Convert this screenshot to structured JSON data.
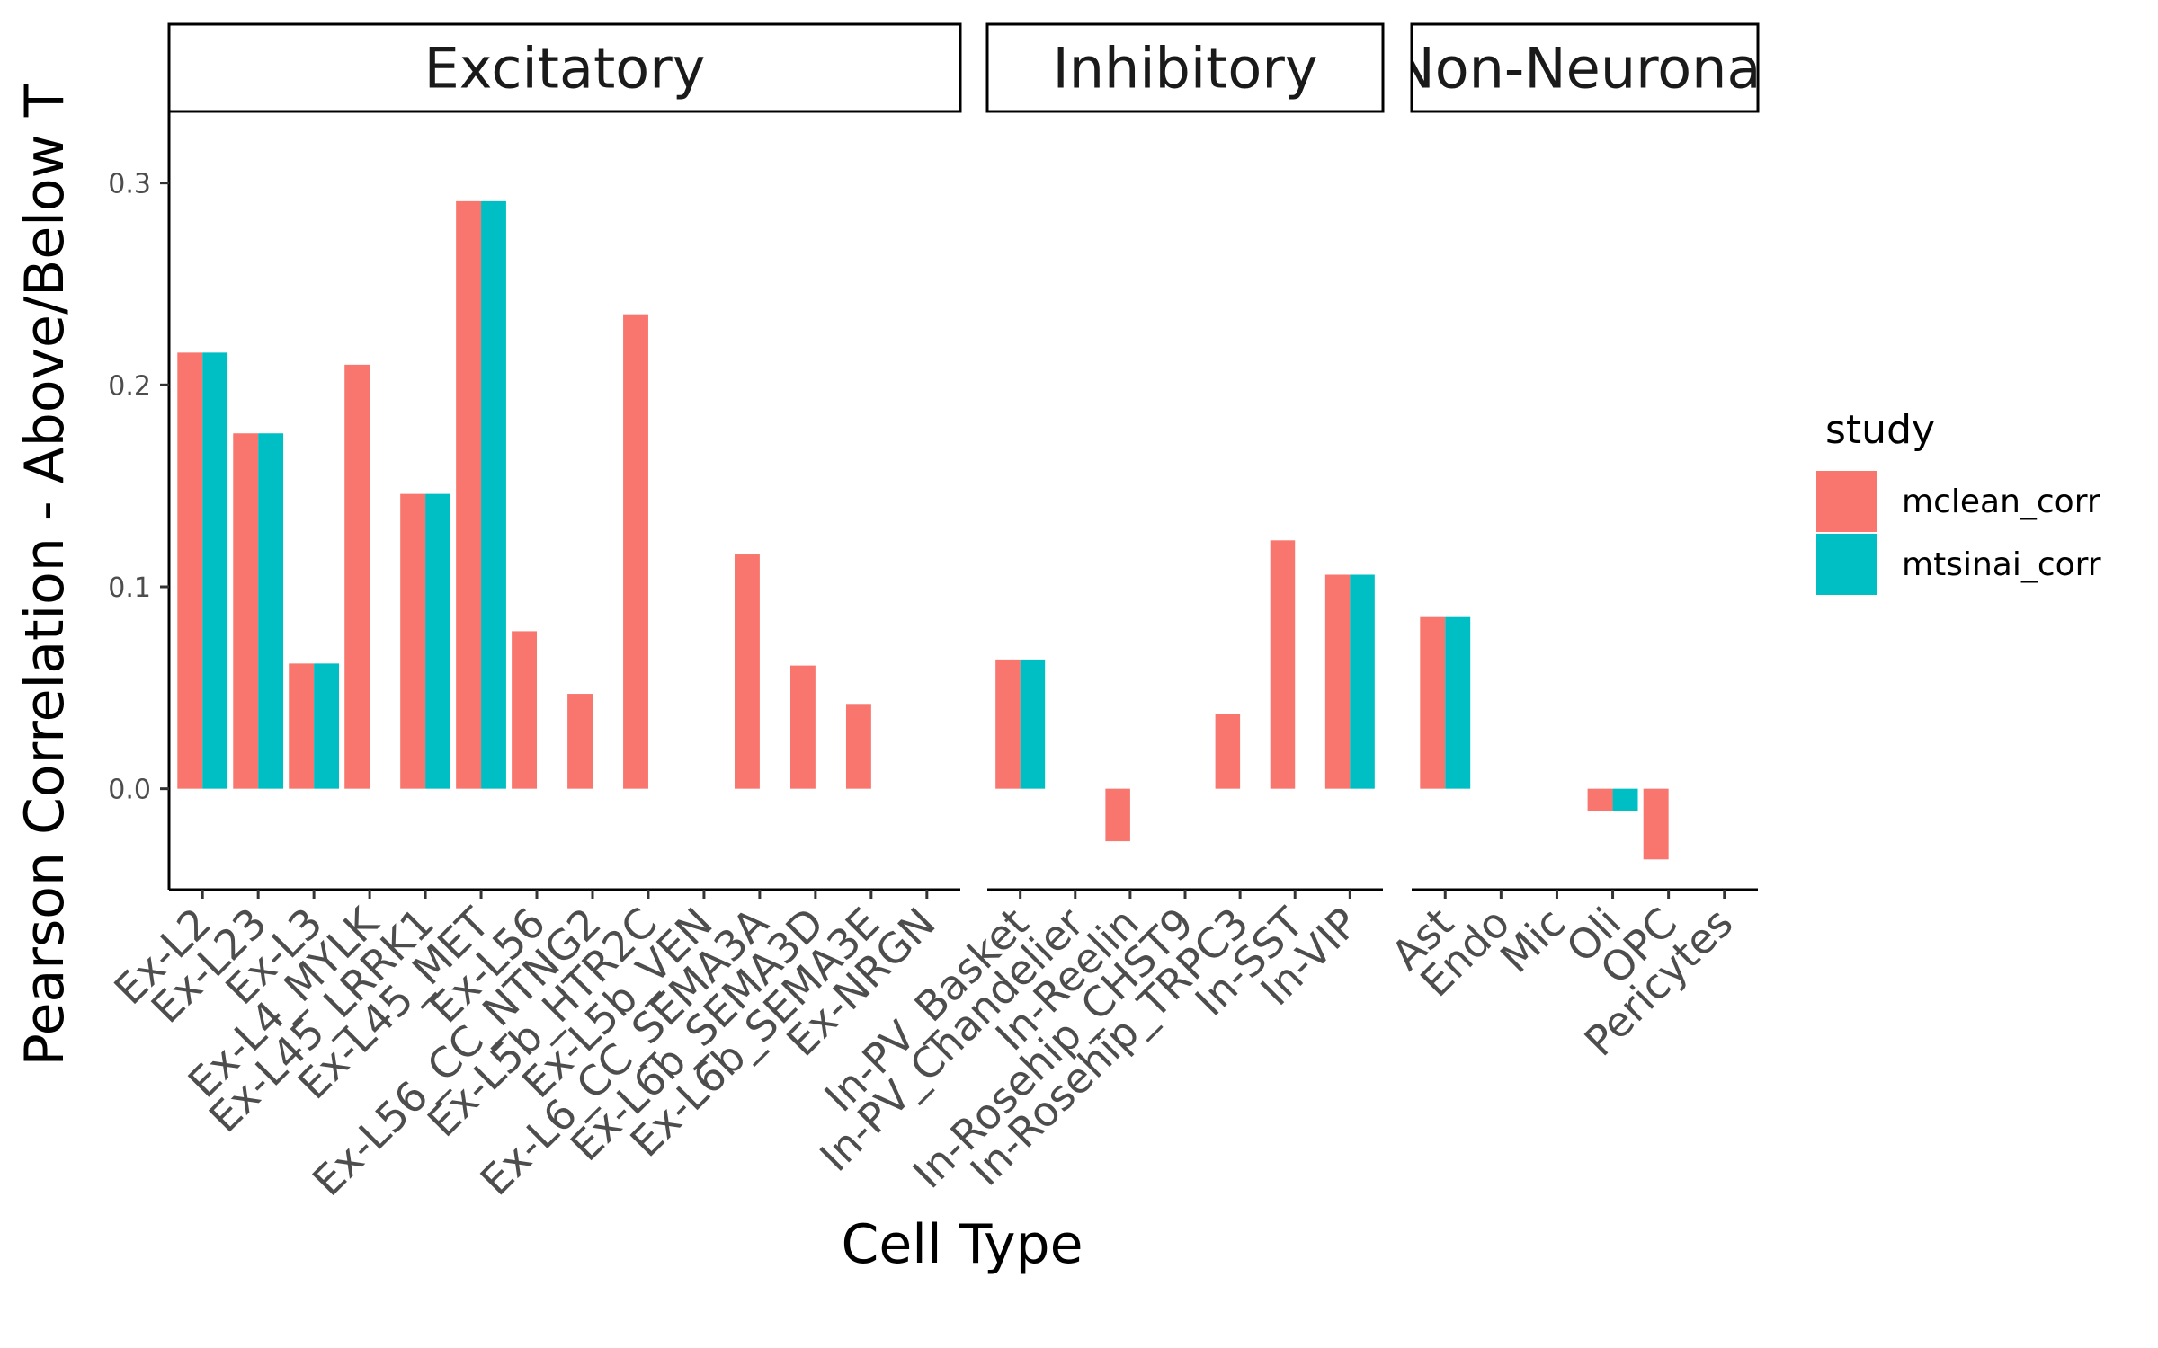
{
  "chart_data": {
    "type": "bar",
    "xlabel": "Cell Type",
    "ylabel": "Pearson Correlation - Above/Below T",
    "ylim": [
      -0.05,
      0.335
    ],
    "yticks": [
      "0.0",
      "0.1",
      "0.2",
      "0.3"
    ],
    "ytick_values": [
      0.0,
      0.1,
      0.2,
      0.3
    ],
    "grid": false,
    "legend": {
      "title": "study",
      "position": "right",
      "entries": [
        {
          "name": "mclean_corr",
          "color": "#F8766D"
        },
        {
          "name": "mtsinai_corr",
          "color": "#00BFC4"
        }
      ]
    },
    "facets": [
      {
        "title": "Excitatory",
        "categories": [
          "Ex-L2",
          "Ex-L23",
          "Ex-L3",
          "Ex-L4_MYLK",
          "Ex-L45_LRRK1",
          "Ex-L45_MET",
          "Ex-L56",
          "Ex-L56_CC_NTNG2",
          "Ex-L5b_HTR2C",
          "Ex-L5b_VEN",
          "Ex-L6_CC_SEMA3A",
          "Ex-L6b_SEMA3D",
          "Ex-L6b_SEMA3E",
          "Ex-NRGN"
        ],
        "series": [
          {
            "name": "mclean_corr",
            "values": [
              0.216,
              0.176,
              0.062,
              0.21,
              0.146,
              0.291,
              0.078,
              0.047,
              0.235,
              null,
              0.116,
              0.061,
              0.042,
              null
            ]
          },
          {
            "name": "mtsinai_corr",
            "values": [
              0.216,
              0.176,
              0.062,
              null,
              0.146,
              0.291,
              null,
              null,
              null,
              null,
              null,
              null,
              null,
              null
            ]
          }
        ]
      },
      {
        "title": "Inhibitory",
        "categories": [
          "In-PV_Basket",
          "In-PV_Chandelier",
          "In-Reelin",
          "In-Rosehip_CHST9",
          "In-Rosehip_TRPC3",
          "In-SST",
          "In-VIP"
        ],
        "series": [
          {
            "name": "mclean_corr",
            "values": [
              0.064,
              null,
              -0.026,
              null,
              0.037,
              0.123,
              0.106
            ]
          },
          {
            "name": "mtsinai_corr",
            "values": [
              0.064,
              null,
              null,
              null,
              null,
              null,
              0.106
            ]
          }
        ]
      },
      {
        "title": "Non-Neuronal",
        "categories": [
          "Ast",
          "Endo",
          "Mic",
          "Oli",
          "OPC",
          "Pericytes"
        ],
        "series": [
          {
            "name": "mclean_corr",
            "values": [
              0.085,
              null,
              null,
              -0.011,
              -0.035,
              null
            ]
          },
          {
            "name": "mtsinai_corr",
            "values": [
              0.085,
              null,
              null,
              -0.011,
              null,
              null
            ]
          }
        ]
      }
    ]
  }
}
